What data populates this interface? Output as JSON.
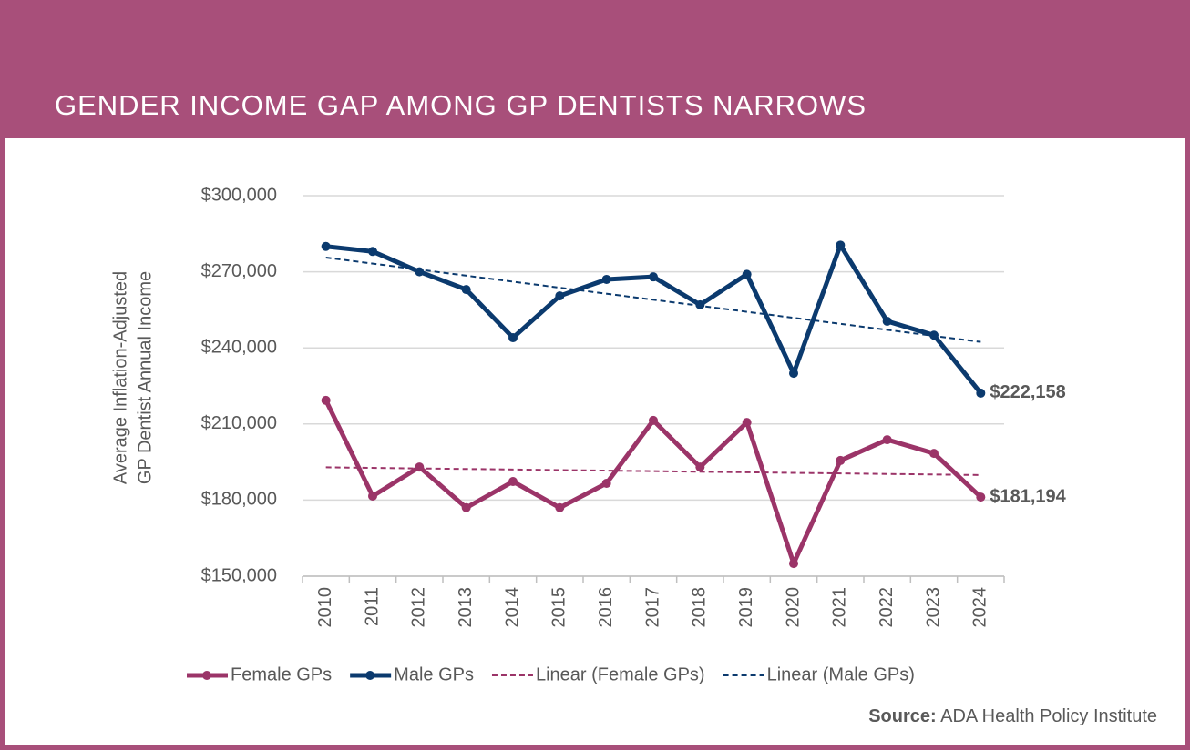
{
  "chart_data": {
    "type": "line",
    "title": "GENDER INCOME GAP AMONG GP DENTISTS NARROWS",
    "y_label": [
      "Average Inflation-Adjusted",
      "GP Dentist Annual Income"
    ],
    "categories": [
      "2010",
      "2011",
      "2012",
      "2013",
      "2014",
      "2015",
      "2016",
      "2017",
      "2018",
      "2019",
      "2020",
      "2021",
      "2022",
      "2023",
      "2024"
    ],
    "series": [
      {
        "name": "Female GPs",
        "color": "#9b3468",
        "values": [
          219300,
          181600,
          193000,
          177000,
          187300,
          177000,
          186600,
          211400,
          193000,
          210600,
          155000,
          195600,
          203800,
          198400,
          181194
        ],
        "value_labels": [
          null,
          null,
          null,
          null,
          null,
          null,
          null,
          null,
          null,
          null,
          null,
          null,
          null,
          null,
          "$181,194"
        ],
        "trend_name": "Linear (Female GPs)"
      },
      {
        "name": "Male GPs",
        "color": "#0b3a6e",
        "values": [
          280000,
          278000,
          270000,
          263000,
          244000,
          260500,
          267000,
          268000,
          257000,
          269000,
          230000,
          280500,
          250500,
          245000,
          222158
        ],
        "value_labels": [
          null,
          null,
          null,
          null,
          null,
          null,
          null,
          null,
          null,
          null,
          null,
          null,
          null,
          null,
          "$222,158"
        ],
        "trend_name": "Linear (Male GPs)"
      }
    ],
    "ylim": [
      150000,
      300000
    ],
    "yticks": [
      {
        "value": 150000,
        "label": "$150,000"
      },
      {
        "value": 180000,
        "label": "$180,000"
      },
      {
        "value": 210000,
        "label": "$210,000"
      },
      {
        "value": 240000,
        "label": "$240,000"
      },
      {
        "value": 270000,
        "label": "$270,000"
      },
      {
        "value": 300000,
        "label": "$300,000"
      }
    ],
    "grid": true,
    "legend": "bottom",
    "source": {
      "label": "Source:",
      "text": "ADA Health Policy Institute"
    }
  }
}
